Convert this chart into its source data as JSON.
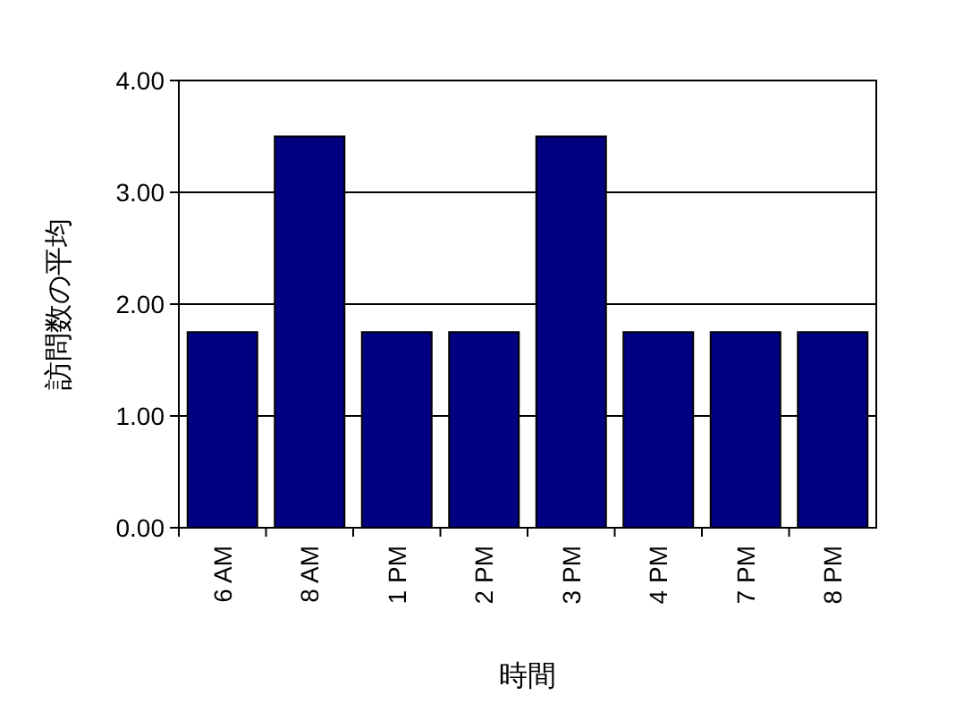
{
  "chart_data": {
    "type": "bar",
    "xlabel": "時間",
    "ylabel": "訪問数の平均",
    "categories": [
      "6 AM",
      "8 AM",
      "1 PM",
      "2 PM",
      "3 PM",
      "4 PM",
      "7 PM",
      "8 PM"
    ],
    "series": [
      {
        "color": "#000080",
        "values": [
          1.75,
          3.5,
          1.75,
          1.75,
          3.5,
          1.75,
          1.75,
          1.75
        ]
      }
    ],
    "ylim": [
      0,
      4
    ],
    "yticks": [
      {
        "value": 0,
        "label": "0.00"
      },
      {
        "value": 1,
        "label": "1.00"
      },
      {
        "value": 2,
        "label": "2.00"
      },
      {
        "value": 3,
        "label": "3.00"
      },
      {
        "value": 4,
        "label": "4.00"
      }
    ],
    "grid": "y"
  }
}
